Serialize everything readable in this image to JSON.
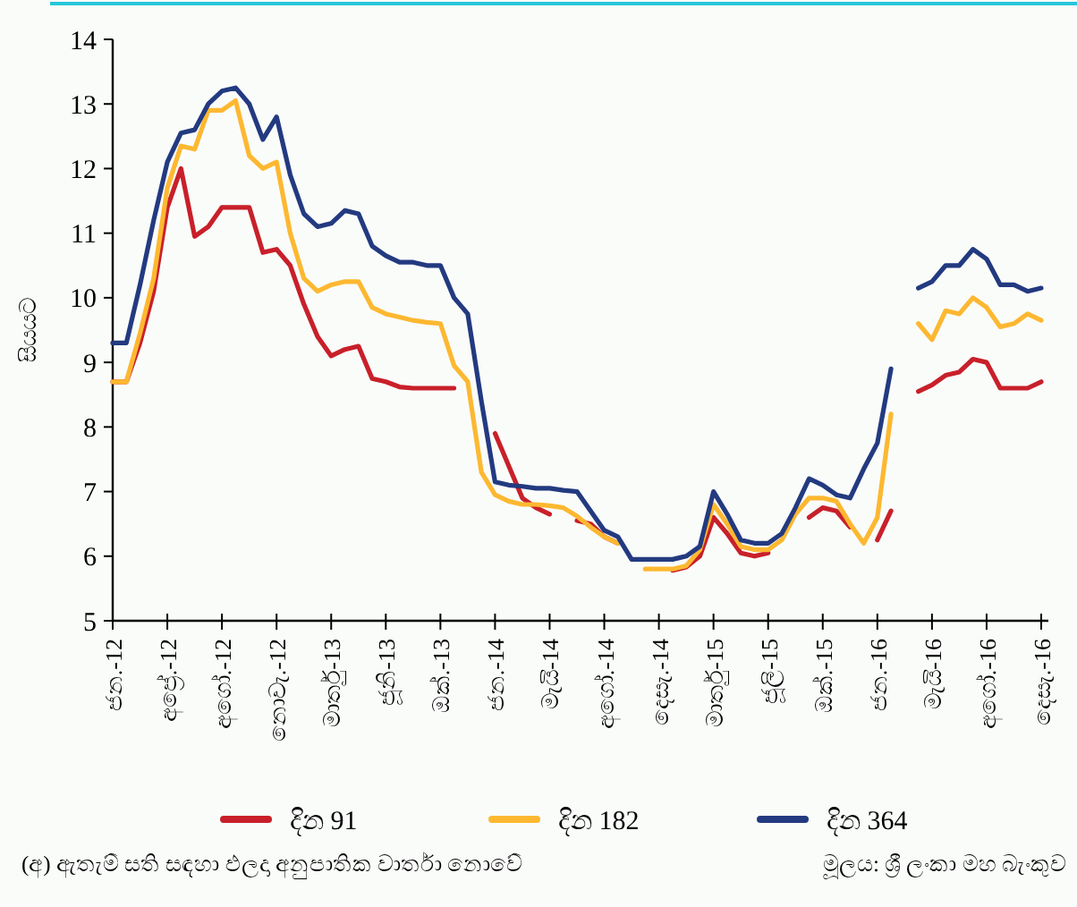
{
  "chart_data": {
    "type": "line",
    "ylabel": "සියයට",
    "ylim": [
      5,
      14
    ],
    "yticks": [
      5,
      6,
      7,
      8,
      9,
      10,
      11,
      12,
      13,
      14
    ],
    "categories": [
      "ජන.-12",
      null,
      null,
      null,
      "අප්‍රේ.-12",
      null,
      null,
      null,
      "අගෝ.-12",
      null,
      null,
      null,
      "නොවැ.-12",
      null,
      null,
      null,
      "මාර්තු-13",
      null,
      null,
      null,
      "ජූනි-13",
      null,
      null,
      null,
      "ඔක්.-13",
      null,
      null,
      null,
      "ජන.-14",
      null,
      null,
      null,
      "මැයි-14",
      null,
      null,
      null,
      "අගෝ.-14",
      null,
      null,
      null,
      "දෙසැ.-14",
      null,
      null,
      null,
      "මාර්තු-15",
      null,
      null,
      null,
      "ජූලි-15",
      null,
      null,
      null,
      "ඔක්.-15",
      null,
      null,
      null,
      "ජන.-16",
      null,
      null,
      null,
      "මැයි-16",
      null,
      null,
      null,
      "අගෝ.-16",
      null,
      null,
      null,
      "දෙසැ.-16"
    ],
    "grid": false,
    "legend": "bottom",
    "marker": "none",
    "line_style": "solid",
    "series": [
      {
        "name": "දින 91",
        "color": "#c8202a",
        "values": [
          8.7,
          8.7,
          9.3,
          10.1,
          11.4,
          12.0,
          10.95,
          11.1,
          11.4,
          11.4,
          11.4,
          10.7,
          10.75,
          10.5,
          9.9,
          9.4,
          9.1,
          9.2,
          9.25,
          8.75,
          8.7,
          8.62,
          8.6,
          8.6,
          8.6,
          8.6,
          null,
          null,
          7.9,
          7.4,
          6.9,
          6.75,
          6.65,
          null,
          6.55,
          6.5,
          6.3,
          6.2,
          null,
          null,
          null,
          5.78,
          5.83,
          6.0,
          6.6,
          6.35,
          6.05,
          6.0,
          6.05,
          null,
          null,
          6.6,
          6.75,
          6.7,
          6.45,
          null,
          6.25,
          6.7,
          null,
          8.55,
          8.65,
          8.8,
          8.85,
          9.05,
          9.0,
          8.6,
          8.6,
          8.6,
          8.7
        ]
      },
      {
        "name": "දින 182",
        "color": "#fdb831",
        "values": [
          8.7,
          8.7,
          9.45,
          10.3,
          11.7,
          12.35,
          12.3,
          12.9,
          12.9,
          13.05,
          12.2,
          12.0,
          12.1,
          11.0,
          10.3,
          10.1,
          10.2,
          10.25,
          10.25,
          9.85,
          9.75,
          9.7,
          9.65,
          9.62,
          9.6,
          8.95,
          8.7,
          7.3,
          6.95,
          6.85,
          6.8,
          6.8,
          6.78,
          6.75,
          6.62,
          6.45,
          6.3,
          6.2,
          null,
          5.8,
          5.8,
          5.8,
          5.85,
          6.1,
          6.8,
          6.5,
          6.15,
          6.1,
          6.1,
          6.25,
          6.65,
          6.9,
          6.9,
          6.85,
          6.5,
          6.2,
          6.6,
          8.2,
          null,
          9.6,
          9.35,
          9.8,
          9.75,
          10.0,
          9.85,
          9.55,
          9.6,
          9.75,
          9.65
        ]
      },
      {
        "name": "දින 364",
        "color": "#233a80",
        "values": [
          9.3,
          9.3,
          10.2,
          11.2,
          12.1,
          12.55,
          12.6,
          13.0,
          13.2,
          13.25,
          13.0,
          12.45,
          12.8,
          11.9,
          11.3,
          11.1,
          11.15,
          11.35,
          11.3,
          10.8,
          10.65,
          10.55,
          10.55,
          10.5,
          10.5,
          10.0,
          9.75,
          8.4,
          7.15,
          7.1,
          7.08,
          7.05,
          7.05,
          7.02,
          7.0,
          6.7,
          6.4,
          6.3,
          5.95,
          5.95,
          5.95,
          5.95,
          6.0,
          6.15,
          7.0,
          6.65,
          6.25,
          6.2,
          6.2,
          6.35,
          6.75,
          7.2,
          7.1,
          6.95,
          6.9,
          7.35,
          7.75,
          8.9,
          null,
          10.15,
          10.25,
          10.5,
          10.5,
          10.75,
          10.6,
          10.2,
          10.2,
          10.1,
          10.15
        ]
      }
    ],
    "annotations": [
      "(අ)  ඇතැම් සති සඳහා ඵලදා අනුපාතික වාර්තා නොවේ",
      "මූලය: ශ්‍රී ලංකා මහ බැංකුව"
    ]
  }
}
